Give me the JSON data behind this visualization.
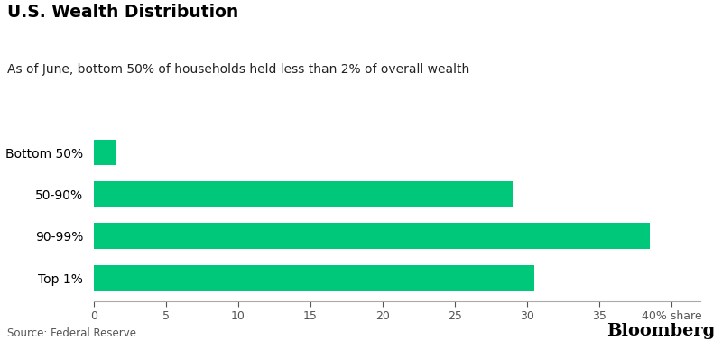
{
  "title": "U.S. Wealth Distribution",
  "subtitle": "As of June, bottom 50% of households held less than 2% of overall wealth",
  "categories": [
    "Bottom 50%",
    "50-90%",
    "90-99%",
    "Top 1%"
  ],
  "values": [
    1.5,
    29.0,
    38.5,
    30.5
  ],
  "bar_color": "#00C87A",
  "background_color": "#FFFFFF",
  "source": "Source: Federal Reserve",
  "bloomberg": "Bloomberg",
  "xlim": [
    0,
    42
  ],
  "xticks": [
    0,
    5,
    10,
    15,
    20,
    25,
    30,
    35,
    40
  ],
  "xtick_labels": [
    "0",
    "5",
    "10",
    "15",
    "20",
    "25",
    "30",
    "35",
    "40% share"
  ],
  "title_fontsize": 13.5,
  "subtitle_fontsize": 10,
  "label_fontsize": 10,
  "tick_fontsize": 9,
  "source_fontsize": 8.5,
  "bloomberg_fontsize": 14
}
